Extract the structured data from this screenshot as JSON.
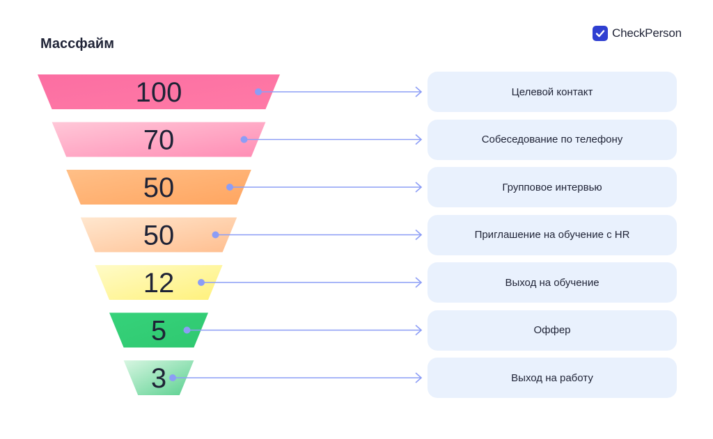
{
  "title": "Массфайм",
  "brand": {
    "name": "CheckPerson",
    "icon": "check-icon",
    "color": "#2f3fd1"
  },
  "chart_data": {
    "type": "funnel",
    "title": "Массфайм",
    "categories": [
      "Целевой контакт",
      "Собеседование по телефону",
      "Групповое интервью",
      "Приглашение на обучение с HR",
      "Выход на обучение",
      "Оффер",
      "Выход на работу"
    ],
    "values": [
      100,
      70,
      50,
      50,
      12,
      5,
      3
    ],
    "colors": [
      [
        "#fb6ea2",
        "#ff7aa6"
      ],
      [
        "#ffc8d8",
        "#ff8cb4"
      ],
      [
        "#ffbf87",
        "#ffa560"
      ],
      [
        "#ffe7cf",
        "#ffbe8f"
      ],
      [
        "#fffbc8",
        "#fff17a"
      ],
      [
        "#36d27a",
        "#2fc870"
      ],
      [
        "#d8f6e2",
        "#59d08f"
      ]
    ],
    "connector_color": "#8c9df6"
  }
}
